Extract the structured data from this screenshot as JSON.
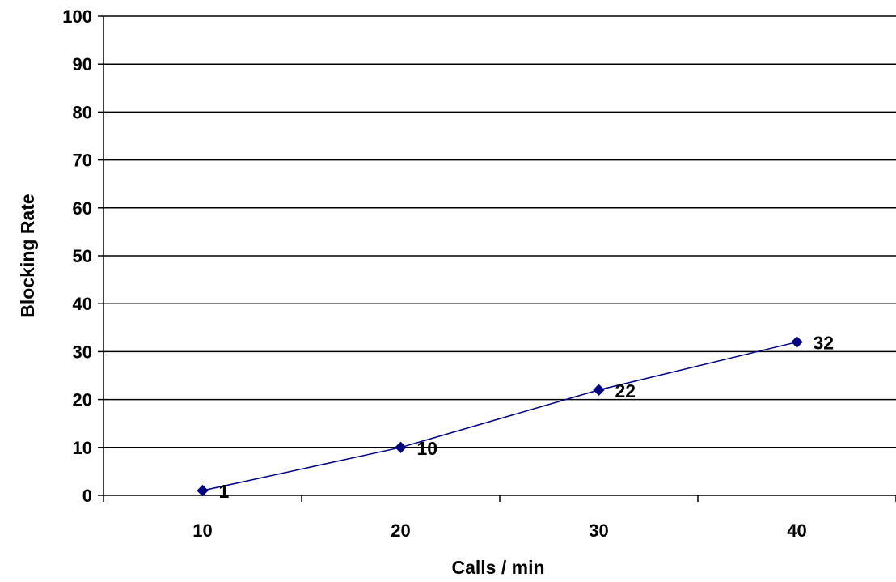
{
  "chart_data": {
    "type": "line",
    "categories": [
      "10",
      "20",
      "30",
      "40"
    ],
    "series": [
      {
        "values": [
          1,
          10,
          22,
          32
        ],
        "color": "#000080"
      }
    ],
    "data_labels": [
      "1",
      "10",
      "22",
      "32"
    ],
    "xlabel": "Calls / min",
    "ylabel": "Blocking Rate",
    "ylim": [
      0,
      100
    ],
    "yticks": [
      "0",
      "10",
      "20",
      "30",
      "40",
      "50",
      "60",
      "70",
      "80",
      "90",
      "100"
    ],
    "grid": "horizontal",
    "marker": "diamond",
    "legend": "none"
  }
}
